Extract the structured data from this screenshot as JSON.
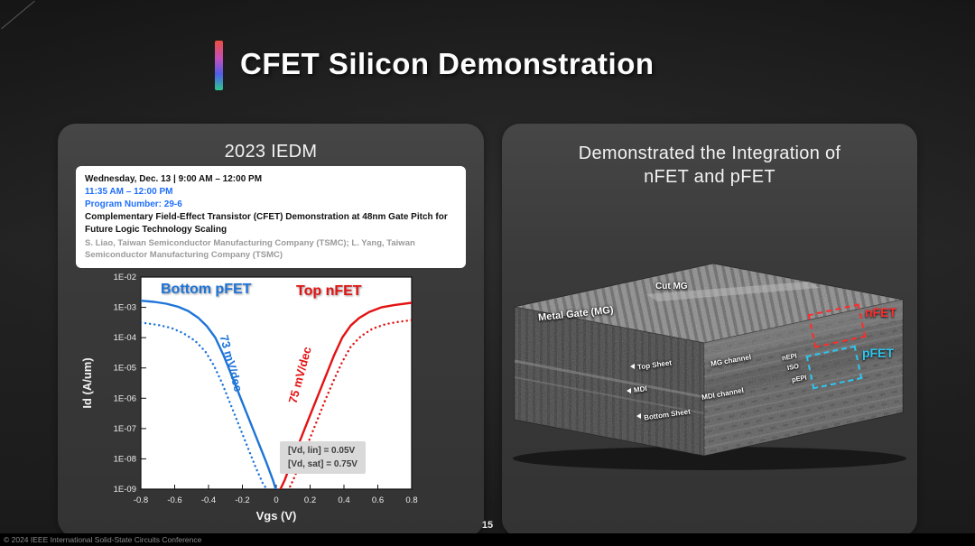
{
  "slide": {
    "title": "CFET Silicon Demonstration",
    "page_number": "15",
    "footer": "© 2024 IEEE International Solid-State Circuits Conference"
  },
  "left_panel": {
    "heading": "2023 IEDM",
    "session_card": {
      "line1": "Wednesday, Dec. 13 | 9:00 AM – 12:00 PM",
      "line2": "11:35 AM – 12:00 PM",
      "line3": "Program Number: 29-6",
      "paper_title": "Complementary Field-Effect Transistor (CFET) Demonstration at 48nm Gate Pitch for Future Logic Technology Scaling",
      "authors": "S. Liao, Taiwan Semiconductor Manufacturing Company (TSMC); L. Yang, Taiwan Semiconductor Manufacturing Company (TSMC)"
    },
    "chart_labels": {
      "pfet": "Bottom pFET",
      "nfet": "Top nFET",
      "pfet_slope": "73 mV/dec",
      "nfet_slope": "75 mV/dec",
      "vd_lin": "[Vd, lin] = 0.05V",
      "vd_sat": "[Vd, sat] = 0.75V"
    }
  },
  "right_panel": {
    "heading_line1": "Demonstrated the Integration of",
    "heading_line2": "nFET and pFET",
    "chip_labels": {
      "metal_gate": "Metal Gate (MG)",
      "cut_mg": "Cut MG",
      "top_sheet": "Top Sheet",
      "mdi": "MDI",
      "bottom_sheet": "Bottom Sheet",
      "mg_channel": "MG channel",
      "mdi_channel": "MDI channel",
      "nepi": "nEPI",
      "iso": "ISO",
      "pepi": "pEPI",
      "nfet": "nFET",
      "pfet": "pFET"
    },
    "colors": {
      "nfet": "#ff2b2b",
      "pfet": "#2ec6f0"
    }
  },
  "chart_data": {
    "type": "line",
    "title": "",
    "xlabel": "Vgs (V)",
    "ylabel": "Id (A/um)",
    "xlim": [
      -0.8,
      0.8
    ],
    "xticks": [
      -0.8,
      -0.6,
      -0.4,
      -0.2,
      0,
      0.2,
      0.4,
      0.6,
      0.8
    ],
    "xtick_labels": [
      "-0.8",
      "-0.6",
      "-0.4",
      "-0.2",
      "0",
      "0.2",
      "0.4",
      "0.6",
      "0.8"
    ],
    "ylim_log10": [
      -9,
      -2
    ],
    "ytick_log10": [
      -2,
      -3,
      -4,
      -5,
      -6,
      -7,
      -8,
      -9
    ],
    "ytick_labels": [
      "1E-02",
      "1E-03",
      "1E-04",
      "1E-05",
      "1E-06",
      "1E-07",
      "1E-08",
      "1E-09"
    ],
    "y_scale": "log10",
    "grid": false,
    "annotations": [
      "73 mV/dec (pFET subthreshold slope)",
      "75 mV/dec (nFET subthreshold slope)",
      "[Vd, lin] = 0.05V",
      "[Vd, sat] = 0.75V"
    ],
    "series": [
      {
        "id": "pfet-sat",
        "name": "Bottom pFET (Vd,sat)",
        "color": "#1e74d8",
        "dash": "solid",
        "points": [
          [
            -0.8,
            -2.78
          ],
          [
            -0.72,
            -2.82
          ],
          [
            -0.65,
            -2.88
          ],
          [
            -0.58,
            -2.98
          ],
          [
            -0.52,
            -3.12
          ],
          [
            -0.46,
            -3.35
          ],
          [
            -0.41,
            -3.62
          ],
          [
            -0.36,
            -4.0
          ],
          [
            -0.31,
            -4.6
          ],
          [
            -0.26,
            -5.3
          ],
          [
            -0.21,
            -6.0
          ],
          [
            -0.16,
            -6.7
          ],
          [
            -0.11,
            -7.4
          ],
          [
            -0.06,
            -8.1
          ],
          [
            -0.02,
            -8.7
          ],
          [
            0.0,
            -9.05
          ]
        ]
      },
      {
        "id": "pfet-lin",
        "name": "Bottom pFET (Vd,lin)",
        "color": "#1e74d8",
        "dash": "dotted",
        "points": [
          [
            -0.8,
            -3.5
          ],
          [
            -0.7,
            -3.58
          ],
          [
            -0.62,
            -3.68
          ],
          [
            -0.55,
            -3.85
          ],
          [
            -0.48,
            -4.1
          ],
          [
            -0.42,
            -4.45
          ],
          [
            -0.37,
            -4.9
          ],
          [
            -0.32,
            -5.5
          ],
          [
            -0.27,
            -6.2
          ],
          [
            -0.22,
            -6.9
          ],
          [
            -0.17,
            -7.6
          ],
          [
            -0.12,
            -8.3
          ],
          [
            -0.08,
            -8.8
          ],
          [
            -0.05,
            -9.05
          ]
        ]
      },
      {
        "id": "nfet-sat",
        "name": "Top nFET (Vd,sat)",
        "color": "#e31212",
        "dash": "solid",
        "points": [
          [
            0.02,
            -9.05
          ],
          [
            0.05,
            -8.7
          ],
          [
            0.09,
            -8.1
          ],
          [
            0.14,
            -7.4
          ],
          [
            0.19,
            -6.7
          ],
          [
            0.24,
            -6.0
          ],
          [
            0.29,
            -5.3
          ],
          [
            0.34,
            -4.6
          ],
          [
            0.39,
            -4.0
          ],
          [
            0.44,
            -3.6
          ],
          [
            0.49,
            -3.35
          ],
          [
            0.55,
            -3.15
          ],
          [
            0.62,
            -3.0
          ],
          [
            0.7,
            -2.92
          ],
          [
            0.8,
            -2.85
          ]
        ]
      },
      {
        "id": "nfet-lin",
        "name": "Top nFET (Vd,lin)",
        "color": "#e31212",
        "dash": "dotted",
        "points": [
          [
            0.07,
            -9.05
          ],
          [
            0.1,
            -8.7
          ],
          [
            0.14,
            -8.15
          ],
          [
            0.19,
            -7.45
          ],
          [
            0.24,
            -6.75
          ],
          [
            0.29,
            -6.05
          ],
          [
            0.34,
            -5.4
          ],
          [
            0.39,
            -4.8
          ],
          [
            0.44,
            -4.3
          ],
          [
            0.5,
            -3.95
          ],
          [
            0.57,
            -3.7
          ],
          [
            0.65,
            -3.55
          ],
          [
            0.72,
            -3.48
          ],
          [
            0.8,
            -3.42
          ]
        ]
      }
    ]
  }
}
